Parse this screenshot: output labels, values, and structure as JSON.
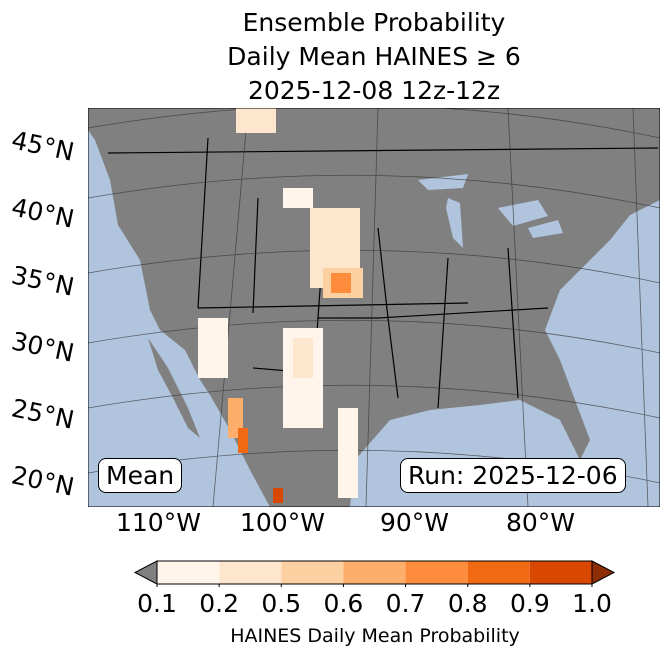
{
  "title": {
    "line1": "Ensemble Probability",
    "line2": "Daily Mean HAINES ≥ 6",
    "line3": "2025-12-08 12z-12z"
  },
  "lat_labels": [
    "45°N",
    "40°N",
    "35°N",
    "30°N",
    "25°N",
    "20°N"
  ],
  "lon_labels": [
    "110°W",
    "100°W",
    "90°W",
    "80°W"
  ],
  "mean_label": "Mean",
  "run_label": "Run: 2025-12-06",
  "colorbar": {
    "ticks": [
      "0.1",
      "0.2",
      "0.5",
      "0.6",
      "0.7",
      "0.8",
      "0.9",
      "1.0"
    ],
    "colors": [
      "#fff5eb",
      "#fee6ce",
      "#fdd0a2",
      "#fdae6b",
      "#fd8d3c",
      "#f16913",
      "#d94801",
      "#8c2d04"
    ],
    "under_color": "#808080",
    "label": "HAINES Daily Mean Probability"
  },
  "colors": {
    "ocean": "#b0c4de",
    "land": "#808080"
  }
}
